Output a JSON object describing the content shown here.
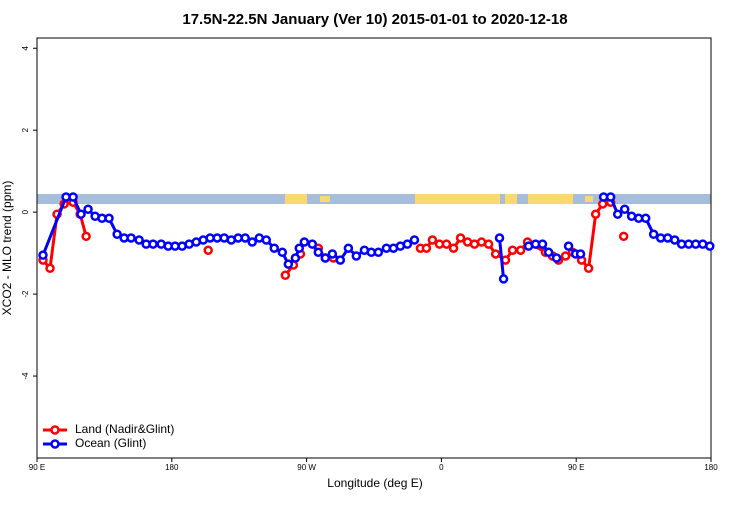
{
  "chart_data": {
    "type": "line",
    "title": "17.5N-22.5N January (Ver 10)   2015-01-01 to 2020-12-18",
    "xlabel": "Longitude (deg E)",
    "ylabel": "XCO2 - MLO trend (ppm)",
    "xlim": [
      90,
      540
    ],
    "ylim": [
      -6,
      4.25
    ],
    "xticks": [
      {
        "value": 90,
        "label": "90 E"
      },
      180,
      {
        "value": 270,
        "label": "90 W"
      },
      {
        "value": 360,
        "label": "0"
      },
      {
        "value": 450,
        "label": "90 E"
      },
      {
        "value": 540,
        "label": "180"
      }
    ],
    "yticks": [
      -4,
      -2,
      0,
      2,
      4
    ],
    "legend": "bottom-left",
    "series": [
      {
        "name": "Land (Nadir&Glint)",
        "color": "#ff0000",
        "x": [
          94.0,
          98.7,
          103.4,
          108.1,
          114.1,
          118.8,
          122.8,
          null,
          204.3,
          null,
          255.8,
          261.2,
          265.9,
          null,
          277.8,
          282.5,
          287.9,
          null,
          346.0,
          350.0,
          354.0,
          358.7,
          363.4,
          368.1,
          372.8,
          377.5,
          382.1,
          386.8,
          391.5,
          396.2,
          402.8,
          407.5,
          412.9,
          417.5,
          429.5,
          434.2,
          438.2,
          442.9,
          447.6,
          453.6,
          458.3,
          463.0,
          467.7,
          473.0,
          null,
          481.7
        ],
        "values": [
          -1.17,
          -1.37,
          -0.05,
          0.2,
          0.24,
          -0.05,
          -0.59,
          null,
          -0.93,
          null,
          -1.54,
          -1.29,
          -1.02,
          null,
          -0.88,
          -1.12,
          -1.12,
          null,
          -0.88,
          -0.88,
          -0.68,
          -0.78,
          -0.78,
          -0.88,
          -0.63,
          -0.73,
          -0.78,
          -0.73,
          -0.78,
          -1.02,
          -1.17,
          -0.93,
          -0.93,
          -0.73,
          -0.98,
          -1.07,
          -1.17,
          -1.07,
          -0.98,
          -1.17,
          -1.37,
          -0.05,
          0.2,
          0.24,
          null,
          -0.59
        ]
      },
      {
        "name": "Ocean (Glint)",
        "color": "#0000ff",
        "x": [
          94.0,
          109.4,
          114.1,
          119.4,
          124.1,
          128.8,
          133.4,
          138.1,
          143.5,
          148.2,
          152.8,
          158.2,
          162.9,
          167.5,
          172.9,
          177.6,
          182.2,
          186.9,
          191.6,
          196.3,
          201.0,
          205.6,
          210.3,
          215.0,
          219.7,
          224.3,
          229.0,
          233.7,
          238.4,
          243.1,
          248.4,
          253.8,
          257.8,
          262.5,
          265.1,
          268.5,
          273.8,
          277.8,
          282.5,
          287.2,
          292.5,
          297.9,
          303.2,
          308.6,
          313.2,
          317.9,
          323.3,
          328.0,
          332.6,
          337.3,
          342.0,
          null,
          398.8,
          401.5,
          null,
          418.2,
          422.9,
          427.5,
          431.6,
          436.9,
          null,
          444.9,
          449.6,
          452.9,
          null,
          468.3,
          473.0,
          477.7,
          482.4,
          487.0,
          491.7,
          496.4,
          501.7,
          506.4,
          511.1,
          515.8,
          520.4,
          525.1,
          529.8,
          534.5,
          539.2
        ],
        "values": [
          -1.05,
          0.37,
          0.37,
          -0.05,
          0.07,
          -0.1,
          -0.15,
          -0.15,
          -0.54,
          -0.63,
          -0.63,
          -0.68,
          -0.78,
          -0.78,
          -0.78,
          -0.83,
          -0.83,
          -0.83,
          -0.78,
          -0.73,
          -0.68,
          -0.63,
          -0.63,
          -0.63,
          -0.68,
          -0.63,
          -0.63,
          -0.73,
          -0.63,
          -0.68,
          -0.88,
          -0.98,
          -1.27,
          -1.12,
          -0.88,
          -0.73,
          -0.78,
          -0.98,
          -1.12,
          -1.02,
          -1.17,
          -0.88,
          -1.07,
          -0.93,
          -0.98,
          -0.98,
          -0.88,
          -0.88,
          -0.83,
          -0.78,
          -0.68,
          null,
          -0.63,
          -1.63,
          null,
          -0.83,
          -0.78,
          -0.78,
          -0.98,
          -1.12,
          null,
          -0.83,
          -1.02,
          -1.02,
          null,
          0.37,
          0.37,
          -0.05,
          0.07,
          -0.1,
          -0.15,
          -0.15,
          -0.54,
          -0.63,
          -0.63,
          -0.68,
          -0.78,
          -0.78,
          -0.78,
          -0.78,
          -0.83
        ]
      }
    ]
  }
}
